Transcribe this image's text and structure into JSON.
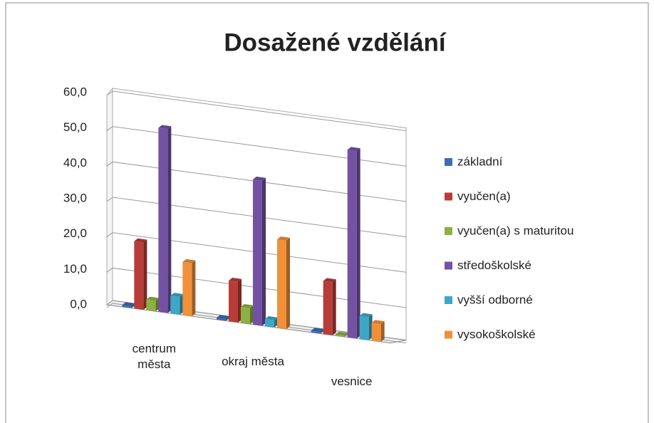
{
  "chart_data": {
    "type": "bar3d",
    "title": "Dosažené vzdělání",
    "categories": [
      "centrum města",
      "okraj města",
      "vesnice"
    ],
    "series": [
      {
        "name": "základní",
        "color": "#3d6cb3",
        "values": [
          0.5,
          0.5,
          0.5
        ]
      },
      {
        "name": "vyučen(a)",
        "color": "#b83c38",
        "values": [
          19,
          11.5,
          15
        ]
      },
      {
        "name": "vyučen(a) s maturitou",
        "color": "#8db043",
        "values": [
          3,
          4.5,
          0.3
        ]
      },
      {
        "name": "středoškolské",
        "color": "#7352a3",
        "values": [
          52,
          41,
          53
        ]
      },
      {
        "name": "vyšší odborné",
        "color": "#3fa6c6",
        "values": [
          5,
          2,
          6.5
        ]
      },
      {
        "name": "vysokoškolské",
        "color": "#f0913a",
        "values": [
          15,
          25,
          5
        ]
      }
    ],
    "ylim": [
      0,
      60
    ],
    "yticks": [
      {
        "value": 0,
        "label": "0,0"
      },
      {
        "value": 10,
        "label": "10,0"
      },
      {
        "value": 20,
        "label": "20,0"
      },
      {
        "value": 30,
        "label": "30,0"
      },
      {
        "value": 40,
        "label": "40,0"
      },
      {
        "value": 50,
        "label": "50,0"
      },
      {
        "value": 60,
        "label": "60,0"
      }
    ],
    "grid": true
  }
}
